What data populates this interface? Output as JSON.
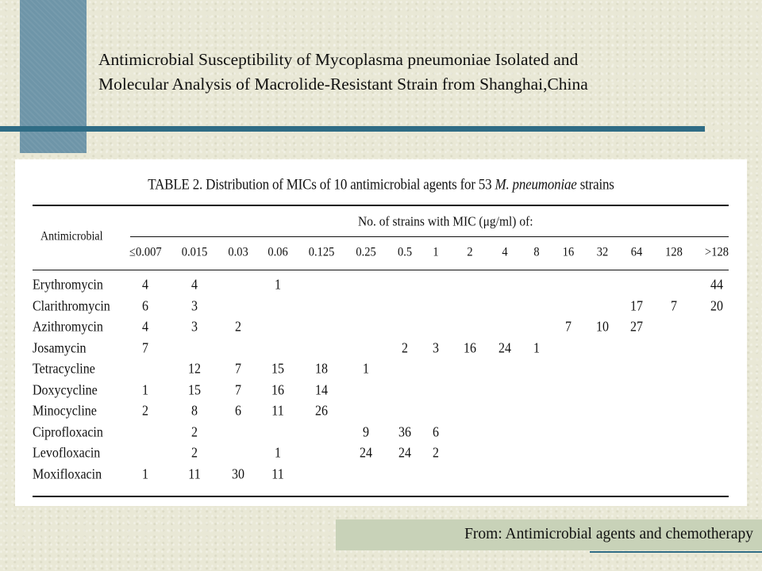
{
  "slide": {
    "title_line1": "Antimicrobial Susceptibility of Mycoplasma pneumoniae Isolated and",
    "title_line2": "Molecular Analysis of Macrolide-Resistant Strain from Shanghai,China",
    "source": "From: Antimicrobial agents and chemotherapy"
  },
  "table": {
    "caption_prefix": "TABLE 2. Distribution of MICs of 10 antimicrobial agents for 53 ",
    "caption_italic": "M. pneumoniae",
    "caption_suffix": " strains",
    "row_header": "Antimicrobial",
    "group_header": "No. of strains with MIC (μg/ml) of:",
    "columns": [
      "≤0.007",
      "0.015",
      "0.03",
      "0.06",
      "0.125",
      "0.25",
      "0.5",
      "1",
      "2",
      "4",
      "8",
      "16",
      "32",
      "64",
      "128",
      ">128"
    ],
    "rows": [
      {
        "name": "Erythromycin",
        "values": [
          "4",
          "4",
          "",
          "1",
          "",
          "",
          "",
          "",
          "",
          "",
          "",
          "",
          "",
          "",
          "",
          "44"
        ]
      },
      {
        "name": "Clarithromycin",
        "values": [
          "6",
          "3",
          "",
          "",
          "",
          "",
          "",
          "",
          "",
          "",
          "",
          "",
          "",
          "17",
          "7",
          "20"
        ]
      },
      {
        "name": "Azithromycin",
        "values": [
          "4",
          "3",
          "2",
          "",
          "",
          "",
          "",
          "",
          "",
          "",
          "",
          "7",
          "10",
          "27",
          "",
          ""
        ]
      },
      {
        "name": "Josamycin",
        "values": [
          "7",
          "",
          "",
          "",
          "",
          "",
          "2",
          "3",
          "16",
          "24",
          "1",
          "",
          "",
          "",
          "",
          ""
        ]
      },
      {
        "name": "Tetracycline",
        "values": [
          "",
          "12",
          "7",
          "15",
          "18",
          "1",
          "",
          "",
          "",
          "",
          "",
          "",
          "",
          "",
          "",
          ""
        ]
      },
      {
        "name": "Doxycycline",
        "values": [
          "1",
          "15",
          "7",
          "16",
          "14",
          "",
          "",
          "",
          "",
          "",
          "",
          "",
          "",
          "",
          "",
          ""
        ]
      },
      {
        "name": "Minocycline",
        "values": [
          "2",
          "8",
          "6",
          "11",
          "26",
          "",
          "",
          "",
          "",
          "",
          "",
          "",
          "",
          "",
          "",
          ""
        ]
      },
      {
        "name": "Ciprofloxacin",
        "values": [
          "",
          "2",
          "",
          "",
          "",
          "9",
          "36",
          "6",
          "",
          "",
          "",
          "",
          "",
          "",
          "",
          ""
        ]
      },
      {
        "name": "Levofloxacin",
        "values": [
          "",
          "2",
          "",
          "1",
          "",
          "24",
          "24",
          "2",
          "",
          "",
          "",
          "",
          "",
          "",
          "",
          ""
        ]
      },
      {
        "name": "Moxifloxacin",
        "values": [
          "1",
          "11",
          "30",
          "11",
          "",
          "",
          "",
          "",
          "",
          "",
          "",
          "",
          "",
          "",
          "",
          ""
        ]
      }
    ]
  }
}
